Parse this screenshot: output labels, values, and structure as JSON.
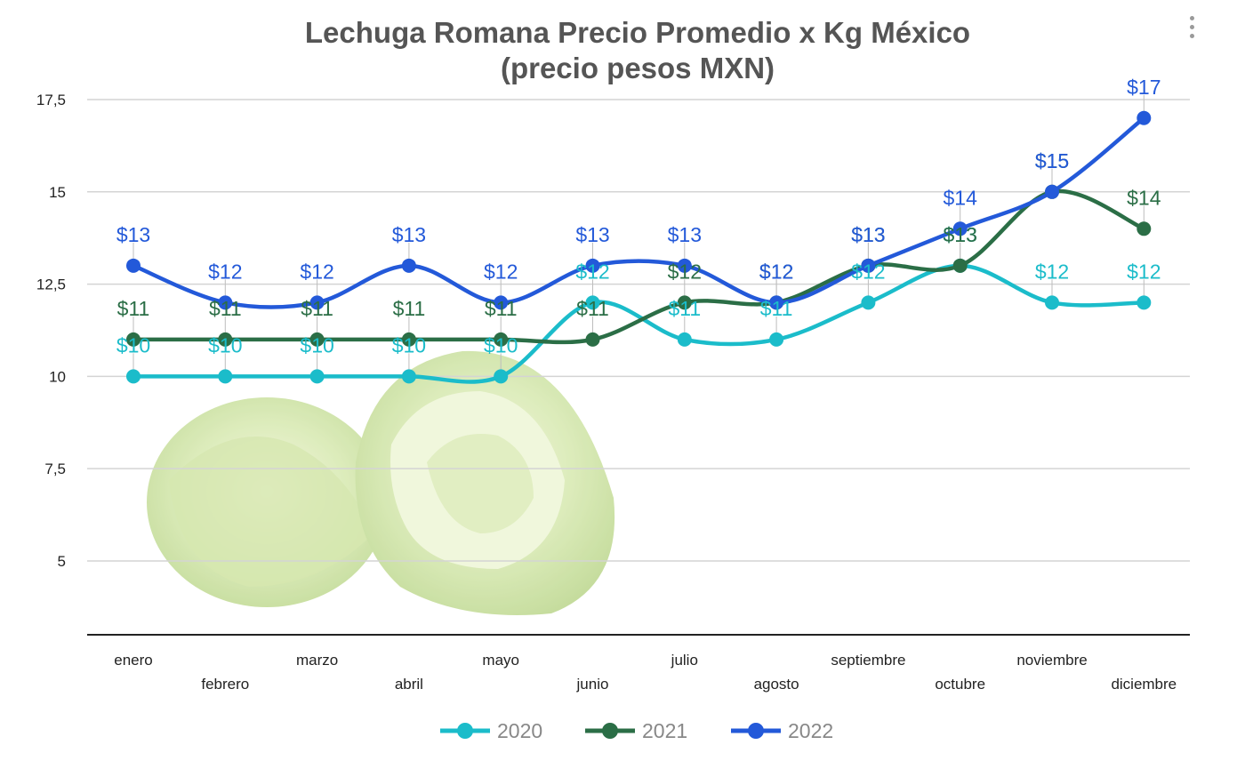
{
  "chart_data": {
    "type": "line",
    "title_lines": [
      "Lechuga Romana Precio Promedio x Kg México",
      "(precio pesos MXN)"
    ],
    "categories": [
      "enero",
      "febrero",
      "marzo",
      "abril",
      "mayo",
      "junio",
      "julio",
      "agosto",
      "septiembre",
      "octubre",
      "noviembre",
      "diciembre"
    ],
    "ylim": [
      3,
      17.5
    ],
    "yticks": [
      {
        "value": 5,
        "label": "5"
      },
      {
        "value": 7.5,
        "label": "7,5"
      },
      {
        "value": 10,
        "label": "10"
      },
      {
        "value": 12.5,
        "label": "12,5"
      },
      {
        "value": 15,
        "label": "15"
      },
      {
        "value": 17.5,
        "label": "17,5"
      }
    ],
    "grid": true,
    "legend_position": "bottom",
    "series": [
      {
        "name": "2020",
        "color": "#1bbcca",
        "values": [
          10,
          10,
          10,
          10,
          10,
          12,
          11,
          11,
          12,
          13,
          12,
          12
        ],
        "labels": [
          "$10",
          "$10",
          "$10",
          "$10",
          "$10",
          "$12",
          "$11",
          "$11",
          "$12",
          "$13",
          "$12",
          "$12"
        ]
      },
      {
        "name": "2021",
        "color": "#2b6e46",
        "values": [
          11,
          11,
          11,
          11,
          11,
          11,
          12,
          12,
          13,
          13,
          15,
          14
        ],
        "labels": [
          "$11",
          "$11",
          "$11",
          "$11",
          "$11",
          "$11",
          "$12",
          "$12",
          "$13",
          "$13",
          "$15",
          "$14"
        ]
      },
      {
        "name": "2022",
        "color": "#2359d9",
        "values": [
          13,
          12,
          12,
          13,
          12,
          13,
          13,
          12,
          13,
          14,
          15,
          17
        ],
        "labels": [
          "$13",
          "$12",
          "$12",
          "$13",
          "$12",
          "$13",
          "$13",
          "$12",
          "$13",
          "$14",
          "$15",
          "$17"
        ]
      }
    ]
  },
  "decoration": {
    "background_image": "lettuce-image"
  }
}
